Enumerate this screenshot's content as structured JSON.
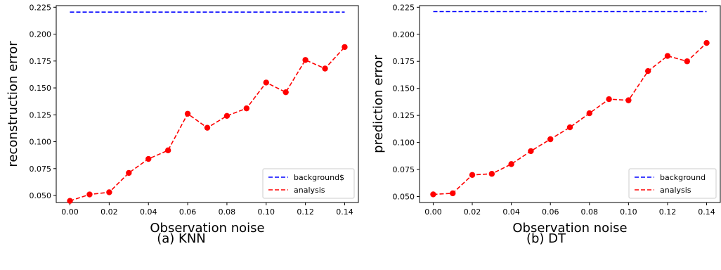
{
  "chart_data": [
    {
      "type": "line",
      "caption": "(a) KNN",
      "xlabel": "Observation noise",
      "ylabel": "reconstruction error",
      "xlim": [
        -0.007,
        0.147
      ],
      "ylim": [
        0.0435,
        0.2265
      ],
      "xticks": [
        0.0,
        0.02,
        0.04,
        0.06,
        0.08,
        0.1,
        0.12,
        0.14
      ],
      "xtick_labels": [
        "0.00",
        "0.02",
        "0.04",
        "0.06",
        "0.08",
        "0.10",
        "0.12",
        "0.14"
      ],
      "yticks": [
        0.05,
        0.075,
        0.1,
        0.125,
        0.15,
        0.175,
        0.2,
        0.225
      ],
      "ytick_labels": [
        "0.050",
        "0.075",
        "0.100",
        "0.125",
        "0.150",
        "0.175",
        "0.200",
        "0.225"
      ],
      "legend_position": "lower-right",
      "grid": false,
      "series": [
        {
          "name": "background$",
          "style": "dashed",
          "color": "#0000ff",
          "markers": false,
          "x": [
            0.0,
            0.14
          ],
          "y": [
            0.2205,
            0.2205
          ]
        },
        {
          "name": "analysis",
          "style": "dashed",
          "color": "#ff0000",
          "markers": true,
          "x": [
            0.0,
            0.01,
            0.02,
            0.03,
            0.04,
            0.05,
            0.06,
            0.07,
            0.08,
            0.09,
            0.1,
            0.11,
            0.12,
            0.13,
            0.14
          ],
          "y": [
            0.045,
            0.051,
            0.053,
            0.071,
            0.084,
            0.092,
            0.126,
            0.113,
            0.124,
            0.131,
            0.155,
            0.146,
            0.176,
            0.168,
            0.188
          ]
        }
      ]
    },
    {
      "type": "line",
      "caption": "(b) DT",
      "xlabel": "Observation noise",
      "ylabel": "prediction error",
      "xlim": [
        -0.007,
        0.147
      ],
      "ylim": [
        0.0445,
        0.2265
      ],
      "xticks": [
        0.0,
        0.02,
        0.04,
        0.06,
        0.08,
        0.1,
        0.12,
        0.14
      ],
      "xtick_labels": [
        "0.00",
        "0.02",
        "0.04",
        "0.06",
        "0.08",
        "0.10",
        "0.12",
        "0.14"
      ],
      "yticks": [
        0.05,
        0.075,
        0.1,
        0.125,
        0.15,
        0.175,
        0.2,
        0.225
      ],
      "ytick_labels": [
        "0.050",
        "0.075",
        "0.100",
        "0.125",
        "0.150",
        "0.175",
        "0.200",
        "0.225"
      ],
      "legend_position": "lower-right",
      "grid": false,
      "series": [
        {
          "name": "background",
          "style": "dashed",
          "color": "#0000ff",
          "markers": false,
          "x": [
            0.0,
            0.14
          ],
          "y": [
            0.221,
            0.221
          ]
        },
        {
          "name": "analysis",
          "style": "dashed",
          "color": "#ff0000",
          "markers": true,
          "x": [
            0.0,
            0.01,
            0.02,
            0.03,
            0.04,
            0.05,
            0.06,
            0.07,
            0.08,
            0.09,
            0.1,
            0.11,
            0.12,
            0.13,
            0.14
          ],
          "y": [
            0.052,
            0.053,
            0.07,
            0.071,
            0.08,
            0.092,
            0.103,
            0.114,
            0.127,
            0.14,
            0.139,
            0.166,
            0.18,
            0.175,
            0.192
          ]
        }
      ]
    }
  ]
}
